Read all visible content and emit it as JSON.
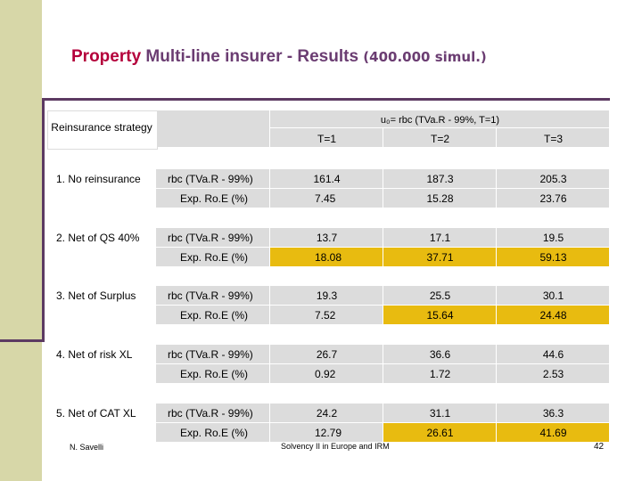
{
  "title": {
    "part1": "Property",
    "part2": "Multi-line insurer - Results",
    "part3": "(400.000 simul.)"
  },
  "header": {
    "strategy_label": "Reinsurance strategy",
    "u0": "u₀= rbc (TVa.R - 99%, T=1)",
    "cols": [
      "T=1",
      "T=2",
      "T=3"
    ]
  },
  "rows": [
    {
      "strategy": "1. No reinsurance",
      "rbc_label": "rbc (TVa.R - 99%)",
      "rbc": [
        "161.4",
        "187.3",
        "205.3"
      ],
      "roe_label": "Exp. Ro.E (%)",
      "roe": [
        "7.45",
        "15.28",
        "23.76"
      ]
    },
    {
      "strategy": "2. Net of QS 40%",
      "rbc_label": "rbc (TVa.R - 99%)",
      "rbc": [
        "13.7",
        "17.1",
        "19.5"
      ],
      "roe_label": "Exp. Ro.E (%)",
      "roe": [
        "18.08",
        "37.71",
        "59.13"
      ]
    },
    {
      "strategy": "3. Net of Surplus",
      "rbc_label": "rbc (TVa.R - 99%)",
      "rbc": [
        "19.3",
        "25.5",
        "30.1"
      ],
      "roe_label": "Exp. Ro.E (%)",
      "roe": [
        "7.52",
        "15.64",
        "24.48"
      ]
    },
    {
      "strategy": "4. Net of risk XL",
      "rbc_label": "rbc (TVa.R - 99%)",
      "rbc": [
        "26.7",
        "36.6",
        "44.6"
      ],
      "roe_label": "Exp. Ro.E (%)",
      "roe": [
        "0.92",
        "1.72",
        "2.53"
      ]
    },
    {
      "strategy": "5. Net of CAT XL",
      "rbc_label": "rbc (TVa.R - 99%)",
      "rbc": [
        "24.2",
        "31.1",
        "36.3"
      ],
      "roe_label": "Exp. Ro.E (%)",
      "roe": [
        "12.79",
        "26.61",
        "41.69"
      ]
    }
  ],
  "footer": {
    "author": "N. Savelli",
    "center": "Solvency II in Europe and IRM",
    "page": "42"
  },
  "colors": {
    "gray": "#dcdcdc",
    "gold": "#e8bb10",
    "title_red": "#b4003b",
    "title_purple": "#6b3d72",
    "sidebar": "#d7d7a8"
  }
}
